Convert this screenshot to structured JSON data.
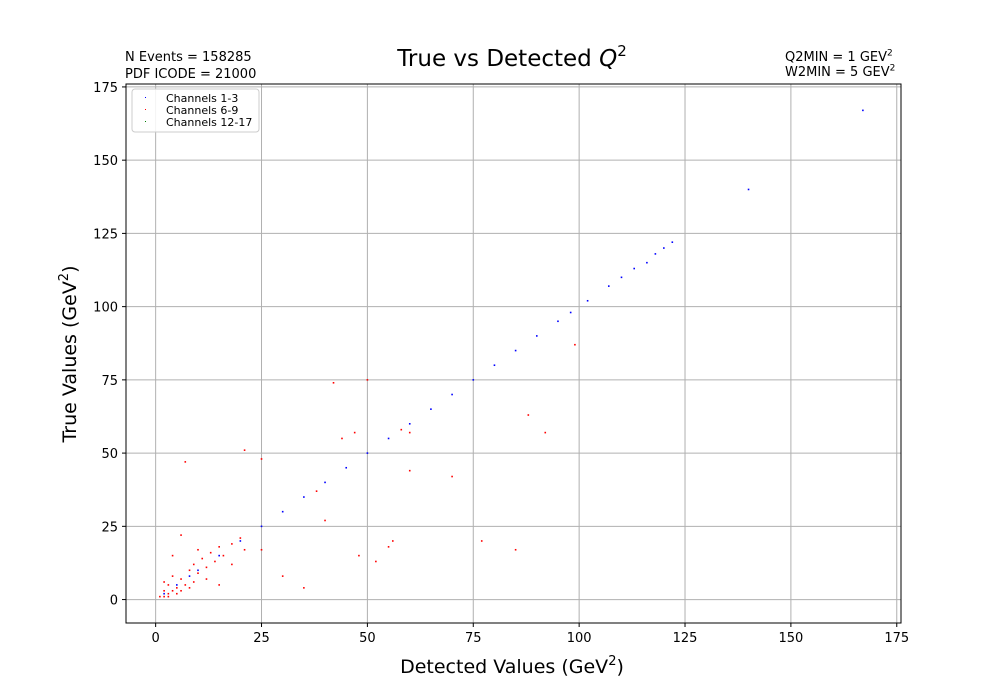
{
  "chart_data": {
    "type": "scatter",
    "title": {
      "main": "True vs Detected ",
      "var": "Q",
      "sup": "2"
    },
    "xlabel": {
      "text": "Detected Values (GeV",
      "sup": "2",
      "close": ")"
    },
    "ylabel": {
      "text": "True Values (GeV",
      "sup": "2",
      "close": ")"
    },
    "xlim": [
      -7,
      176
    ],
    "ylim": [
      -8,
      176
    ],
    "xticks": [
      0,
      25,
      50,
      75,
      100,
      125,
      150,
      175
    ],
    "yticks": [
      0,
      25,
      50,
      75,
      100,
      125,
      150,
      175
    ],
    "grid": true,
    "legend_position": "top-left",
    "colors": {
      "ch1": "#0000ff",
      "ch2": "#ff0000",
      "ch3": "#008000",
      "grid": "#b0b0b0"
    },
    "series": [
      {
        "name": "Channels 1-3",
        "color": "#0000ff",
        "points": [
          [
            2,
            2
          ],
          [
            5,
            5
          ],
          [
            8,
            8
          ],
          [
            10,
            10
          ],
          [
            15,
            15
          ],
          [
            20,
            20
          ],
          [
            25,
            25
          ],
          [
            30,
            30
          ],
          [
            35,
            35
          ],
          [
            40,
            40
          ],
          [
            45,
            45
          ],
          [
            50,
            50
          ],
          [
            55,
            55
          ],
          [
            60,
            60
          ],
          [
            65,
            65
          ],
          [
            70,
            70
          ],
          [
            75,
            75
          ],
          [
            80,
            80
          ],
          [
            85,
            85
          ],
          [
            90,
            90
          ],
          [
            95,
            95
          ],
          [
            98,
            98
          ],
          [
            102,
            102
          ],
          [
            107,
            107
          ],
          [
            110,
            110
          ],
          [
            113,
            113
          ],
          [
            116,
            115
          ],
          [
            118,
            118
          ],
          [
            120,
            120
          ],
          [
            122,
            122
          ],
          [
            140,
            140
          ],
          [
            167,
            167
          ]
        ]
      },
      {
        "name": "Channels 6-9",
        "color": "#ff0000",
        "points": [
          [
            1,
            1
          ],
          [
            2,
            1
          ],
          [
            3,
            2
          ],
          [
            2,
            3
          ],
          [
            4,
            3
          ],
          [
            3,
            5
          ],
          [
            5,
            4
          ],
          [
            6,
            7
          ],
          [
            7,
            5
          ],
          [
            4,
            8
          ],
          [
            8,
            10
          ],
          [
            10,
            9
          ],
          [
            9,
            12
          ],
          [
            12,
            11
          ],
          [
            11,
            14
          ],
          [
            14,
            13
          ],
          [
            13,
            16
          ],
          [
            16,
            15
          ],
          [
            15,
            18
          ],
          [
            18,
            19
          ],
          [
            20,
            21
          ],
          [
            21,
            17
          ],
          [
            7,
            47
          ],
          [
            21,
            51
          ],
          [
            25,
            48
          ],
          [
            42,
            74
          ],
          [
            50,
            75
          ],
          [
            47,
            57
          ],
          [
            44,
            55
          ],
          [
            60,
            44
          ],
          [
            70,
            42
          ],
          [
            77,
            20
          ],
          [
            85,
            17
          ],
          [
            88,
            63
          ],
          [
            92,
            57
          ],
          [
            99,
            87
          ],
          [
            30,
            8
          ],
          [
            35,
            4
          ],
          [
            52,
            13
          ],
          [
            56,
            20
          ],
          [
            48,
            15
          ],
          [
            40,
            27
          ],
          [
            55,
            18
          ],
          [
            58,
            58
          ],
          [
            60,
            57
          ],
          [
            38,
            37
          ],
          [
            6,
            3
          ],
          [
            3,
            1
          ],
          [
            5,
            2
          ],
          [
            2,
            6
          ],
          [
            8,
            4
          ],
          [
            9,
            6
          ],
          [
            12,
            7
          ],
          [
            4,
            15
          ],
          [
            6,
            22
          ],
          [
            15,
            5
          ],
          [
            18,
            12
          ],
          [
            10,
            17
          ],
          [
            25,
            17
          ]
        ]
      },
      {
        "name": "Channels 12-17",
        "color": "#008000",
        "points": []
      }
    ]
  },
  "info": {
    "events_label": "N Events =  158285",
    "pdf_label": "PDF ICODE = 21000",
    "q2min_label": "Q2MIN = 1 GEV",
    "w2min_label": "W2MIN = 5 GEV",
    "unit_sup": "2"
  }
}
